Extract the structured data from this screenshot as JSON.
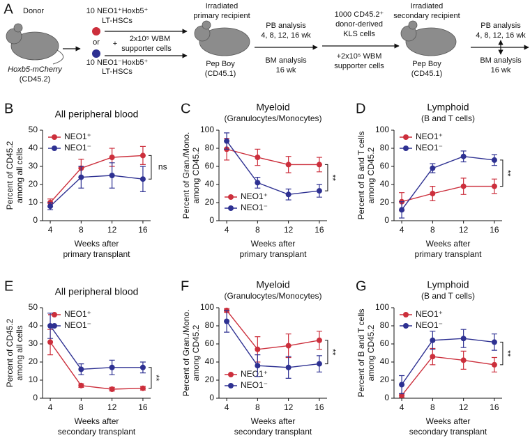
{
  "schematic": {
    "panel": "A",
    "texts": [
      "Donor",
      "Hoxb5-mCherry",
      "(CD45.2)",
      "10 NEO1⁺Hoxb5⁺",
      "LT-HSCs",
      "or",
      "+",
      "2x10⁵ WBM",
      "supporter cells",
      "10 NEO1⁻Hoxb5⁺",
      "LT-HSCs",
      "Irradiated",
      "primary recipient",
      "Pep Boy",
      "(CD45.1)",
      "PB analysis",
      "4, 8, 12, 16 wk",
      "BM analysis",
      "16 wk",
      "1000 CD45.2⁺",
      "donor-derived",
      "KLS cells",
      "+2x10⁵ WBM",
      "supporter cells",
      "Irradiated",
      "secondary recipient",
      "Pep Boy",
      "(CD45.1)",
      "PB analysis",
      "4, 8, 12, 16 wk",
      "BM analysis",
      "16 wk"
    ]
  },
  "chart_data": [
    {
      "type": "line",
      "panel": "B",
      "title": "All peripheral blood",
      "ylabel": [
        "Percent of CD45.2",
        "among all cells"
      ],
      "xlabel": [
        "Weeks after",
        "primary transplant"
      ],
      "x": [
        4,
        8,
        12,
        16
      ],
      "xlim": [
        3,
        17
      ],
      "xticks": [
        4,
        8,
        12,
        16
      ],
      "ylim": [
        0,
        50
      ],
      "yticks": [
        0,
        10,
        20,
        30,
        40,
        50
      ],
      "legend": "upper left",
      "annotation": "ns",
      "annotation_vertical": false,
      "series": [
        {
          "name": "NEO1⁺",
          "color": "#cc2f3c",
          "values": [
            10,
            29,
            35,
            36
          ],
          "errors": [
            2,
            5,
            5,
            5
          ]
        },
        {
          "name": "NEO1⁻",
          "color": "#2e3192",
          "values": [
            8,
            24,
            25,
            23
          ],
          "errors": [
            2,
            6,
            7,
            7
          ]
        }
      ]
    },
    {
      "type": "line",
      "panel": "C",
      "title": "Myeloid",
      "subtitle": "(Granulocytes/Monocytes)",
      "ylabel": [
        "Percent of Gran./Mono.",
        "among CD45.2"
      ],
      "xlabel": [
        "Weeks after",
        "primary transplant"
      ],
      "x": [
        4,
        8,
        12,
        16
      ],
      "xlim": [
        3,
        17
      ],
      "xticks": [
        4,
        8,
        12,
        16
      ],
      "ylim": [
        0,
        100
      ],
      "yticks": [
        0,
        20,
        40,
        60,
        80,
        100
      ],
      "legend": "lower left",
      "annotation": "**",
      "annotation_vertical": true,
      "series": [
        {
          "name": "NEO1⁺",
          "color": "#cc2f3c",
          "values": [
            79,
            70,
            62,
            62
          ],
          "errors": [
            12,
            9,
            9,
            8
          ]
        },
        {
          "name": "NEO1⁻",
          "color": "#2e3192",
          "values": [
            88,
            42,
            29,
            33
          ],
          "errors": [
            9,
            6,
            6,
            7
          ]
        }
      ]
    },
    {
      "type": "line",
      "panel": "D",
      "title": "Lymphoid",
      "subtitle": "(B and T cells)",
      "ylabel": [
        "Percent of B and T cells",
        "among CD45.2"
      ],
      "xlabel": [
        "Weeks after",
        "primary transplant"
      ],
      "x": [
        4,
        8,
        12,
        16
      ],
      "xlim": [
        3,
        17
      ],
      "xticks": [
        4,
        8,
        12,
        16
      ],
      "ylim": [
        0,
        100
      ],
      "yticks": [
        0,
        20,
        40,
        60,
        80,
        100
      ],
      "legend": "upper left",
      "annotation": "**",
      "annotation_vertical": true,
      "series": [
        {
          "name": "NEO1⁺",
          "color": "#cc2f3c",
          "values": [
            21,
            30,
            38,
            38
          ],
          "errors": [
            10,
            8,
            9,
            8
          ]
        },
        {
          "name": "NEO1⁻",
          "color": "#2e3192",
          "values": [
            12,
            58,
            71,
            67
          ],
          "errors": [
            9,
            5,
            6,
            6
          ]
        }
      ]
    },
    {
      "type": "line",
      "panel": "E",
      "title": "All peripheral blood",
      "ylabel": [
        "Percent of CD45.2",
        "among all cells"
      ],
      "xlabel": [
        "Weeks after",
        "secondary transplant"
      ],
      "x": [
        4,
        8,
        12,
        16
      ],
      "xlim": [
        3,
        17
      ],
      "xticks": [
        4,
        8,
        12,
        16
      ],
      "ylim": [
        0,
        50
      ],
      "yticks": [
        0,
        10,
        20,
        30,
        40,
        50
      ],
      "legend": "upper left",
      "annotation": "**",
      "annotation_vertical": true,
      "series": [
        {
          "name": "NEO1⁺",
          "color": "#cc2f3c",
          "values": [
            31,
            7,
            5,
            5.5
          ],
          "errors": [
            7,
            1,
            1,
            1
          ]
        },
        {
          "name": "NEO1⁻",
          "color": "#2e3192",
          "values": [
            40,
            16,
            17,
            17
          ],
          "errors": [
            7,
            3,
            4,
            3
          ]
        }
      ]
    },
    {
      "type": "line",
      "panel": "F",
      "title": "Myeloid",
      "subtitle": "(Granulocytes/Monocytes)",
      "ylabel": [
        "Percent of Gran./Mono.",
        "among CD45.2"
      ],
      "xlabel": [
        "Weeks after",
        "secondary transplant"
      ],
      "x": [
        4,
        8,
        12,
        16
      ],
      "xlim": [
        3,
        17
      ],
      "xticks": [
        4,
        8,
        12,
        16
      ],
      "ylim": [
        0,
        100
      ],
      "yticks": [
        0,
        20,
        40,
        60,
        80,
        100
      ],
      "legend": "lower left",
      "annotation": "**",
      "annotation_vertical": true,
      "series": [
        {
          "name": "NEO1⁺",
          "color": "#cc2f3c",
          "values": [
            97,
            54,
            58,
            64
          ],
          "errors": [
            2,
            14,
            13,
            10
          ]
        },
        {
          "name": "NEO1⁻",
          "color": "#2e3192",
          "values": [
            85,
            36,
            34,
            38
          ],
          "errors": [
            12,
            12,
            12,
            9
          ]
        }
      ]
    },
    {
      "type": "line",
      "panel": "G",
      "title": "Lymphoid",
      "subtitle": "(B and T cells)",
      "ylabel": [
        "Percent of B and T cells",
        "among CD45.2"
      ],
      "xlabel": [
        "Weeks after",
        "secondary transplant"
      ],
      "x": [
        4,
        8,
        12,
        16
      ],
      "xlim": [
        3,
        17
      ],
      "xticks": [
        4,
        8,
        12,
        16
      ],
      "ylim": [
        0,
        100
      ],
      "yticks": [
        0,
        20,
        40,
        60,
        80,
        100
      ],
      "legend": "upper left",
      "annotation": "**",
      "annotation_vertical": true,
      "series": [
        {
          "name": "NEO1⁺",
          "color": "#cc2f3c",
          "values": [
            3,
            46,
            42,
            37
          ],
          "errors": [
            2,
            9,
            10,
            8
          ]
        },
        {
          "name": "NEO1⁻",
          "color": "#2e3192",
          "values": [
            15,
            64,
            66,
            62
          ],
          "errors": [
            10,
            10,
            10,
            9
          ]
        }
      ]
    }
  ]
}
